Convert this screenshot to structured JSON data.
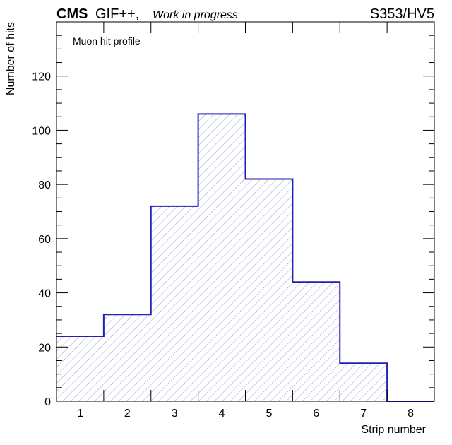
{
  "header": {
    "experiment": "CMS",
    "facility": "GIF++,",
    "status": "Work in progress",
    "run_label": "S353/HV5"
  },
  "chart_data": {
    "type": "bar",
    "histogram": true,
    "annotation": "Muon hit profile",
    "xlabel": "Strip number",
    "ylabel": "Number of hits",
    "categories": [
      "1",
      "2",
      "3",
      "4",
      "5",
      "6",
      "7",
      "8"
    ],
    "values": [
      24,
      32,
      72,
      106,
      82,
      44,
      14,
      0
    ],
    "xlim": [
      0.5,
      8.5
    ],
    "ylim": [
      0,
      140
    ],
    "y_ticks": [
      0,
      20,
      40,
      60,
      80,
      100,
      120
    ],
    "y_minor_step": 5,
    "grid": false,
    "line_color": "#2020b8",
    "fill": "diagonal-hatch",
    "hatch_color": "#9a9ad6"
  }
}
